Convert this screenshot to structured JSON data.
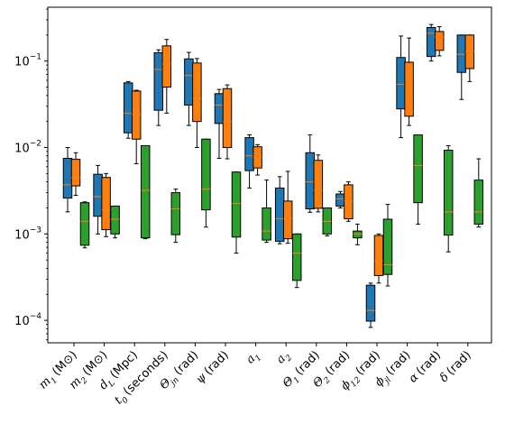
{
  "chart_data": {
    "type": "box",
    "y_scale": "log",
    "ylim": [
      5.5e-05,
      0.42
    ],
    "y_ticks": [
      {
        "value": 0.0001,
        "mantissa": "10",
        "exp": "−4"
      },
      {
        "value": 0.001,
        "mantissa": "10",
        "exp": "−3"
      },
      {
        "value": 0.01,
        "mantissa": "10",
        "exp": "−2"
      },
      {
        "value": 0.1,
        "mantissa": "10",
        "exp": "−1"
      }
    ],
    "categories": [
      {
        "math": "m",
        "sub": "1",
        "unit": "(M⊙)"
      },
      {
        "math": "m",
        "sub": "2",
        "unit": "(M⊙)"
      },
      {
        "math": "d",
        "sub": "L",
        "unit": "(Mpc)"
      },
      {
        "math": "t",
        "sub": "0",
        "unit": "(seconds)"
      },
      {
        "math": "Θ",
        "sub": "jn",
        "unit": "(rad)"
      },
      {
        "math": "ψ",
        "sub": "",
        "unit": "(rad)"
      },
      {
        "math": "a",
        "sub": "1",
        "unit": ""
      },
      {
        "math": "a",
        "sub": "2",
        "unit": ""
      },
      {
        "math": "Θ",
        "sub": "1",
        "unit": "(rad)"
      },
      {
        "math": "Θ",
        "sub": "2",
        "unit": "(rad)"
      },
      {
        "math": "ϕ",
        "sub": "12",
        "unit": "(rad)"
      },
      {
        "math": "ϕ",
        "sub": "jl",
        "unit": "(rad)"
      },
      {
        "math": "α",
        "sub": "",
        "unit": "(rad)"
      },
      {
        "math": "δ",
        "sub": "",
        "unit": "(rad)"
      }
    ],
    "colors": {
      "blue": "#1f77b4",
      "orange": "#ff7f0e",
      "green": "#2ca02c",
      "median_on_blue_orange": "#ff7f0e",
      "median_on_orange": "#ff7f0e"
    },
    "series": [
      {
        "color": "#1f77b4",
        "boxes": [
          {
            "whislo": 0.0018,
            "q1": 0.0026,
            "med": 0.0037,
            "q3": 0.0075,
            "whishi": 0.01
          },
          {
            "whislo": 0.001,
            "q1": 0.0016,
            "med": 0.0027,
            "q3": 0.0049,
            "whishi": 0.0062
          },
          {
            "whislo": 0.0128,
            "q1": 0.0148,
            "med": 0.025,
            "q3": 0.056,
            "whishi": 0.058
          },
          {
            "whislo": 0.018,
            "q1": 0.027,
            "med": 0.08,
            "q3": 0.125,
            "whishi": 0.135
          },
          {
            "whislo": 0.018,
            "q1": 0.031,
            "med": 0.068,
            "q3": 0.106,
            "whishi": 0.126
          },
          {
            "whislo": 0.0075,
            "q1": 0.019,
            "med": 0.031,
            "q3": 0.042,
            "whishi": 0.047
          },
          {
            "whislo": 0.0034,
            "q1": 0.0054,
            "med": 0.008,
            "q3": 0.013,
            "whishi": 0.014
          },
          {
            "whislo": 0.00077,
            "q1": 0.00082,
            "med": 0.0015,
            "q3": 0.0034,
            "whishi": 0.0046
          },
          {
            "whislo": 0.00178,
            "q1": 0.00195,
            "med": 0.004,
            "q3": 0.0087,
            "whishi": 0.014
          },
          {
            "whislo": 0.002,
            "q1": 0.0021,
            "med": 0.00255,
            "q3": 0.0029,
            "whishi": 0.0031
          },
          {
            "whislo": 8.3e-05,
            "q1": 9.8e-05,
            "med": 0.00013,
            "q3": 0.000255,
            "whishi": 0.00027
          },
          {
            "whislo": 0.013,
            "q1": 0.028,
            "med": 0.054,
            "q3": 0.11,
            "whishi": 0.195
          },
          {
            "whislo": 0.1,
            "q1": 0.113,
            "med": 0.21,
            "q3": 0.245,
            "whishi": 0.265
          },
          {
            "whislo": 0.036,
            "q1": 0.074,
            "med": 0.12,
            "q3": 0.2,
            "whishi": 0.2
          }
        ]
      },
      {
        "color": "#ff7f0e",
        "boxes": [
          {
            "whislo": 0.0028,
            "q1": 0.0036,
            "med": 0.0045,
            "q3": 0.0073,
            "whishi": 0.0087
          },
          {
            "whislo": 0.00093,
            "q1": 0.00112,
            "med": 0.0019,
            "q3": 0.0045,
            "whishi": 0.005
          },
          {
            "whislo": 0.0065,
            "q1": 0.0125,
            "med": 0.024,
            "q3": 0.045,
            "whishi": 0.046
          },
          {
            "whislo": 0.025,
            "q1": 0.05,
            "med": 0.093,
            "q3": 0.15,
            "whishi": 0.178
          },
          {
            "whislo": 0.01,
            "q1": 0.02,
            "med": 0.037,
            "q3": 0.095,
            "whishi": 0.107
          },
          {
            "whislo": 0.0074,
            "q1": 0.01,
            "med": 0.02,
            "q3": 0.048,
            "whishi": 0.053
          },
          {
            "whislo": 0.0048,
            "q1": 0.0058,
            "med": 0.0077,
            "q3": 0.0102,
            "whishi": 0.0108
          },
          {
            "whislo": 0.00078,
            "q1": 0.00088,
            "med": 0.0015,
            "q3": 0.0024,
            "whishi": 0.0053
          },
          {
            "whislo": 0.0018,
            "q1": 0.00198,
            "med": 0.0032,
            "q3": 0.0071,
            "whishi": 0.0082
          },
          {
            "whislo": 0.0014,
            "q1": 0.0015,
            "med": 0.0024,
            "q3": 0.0037,
            "whishi": 0.004
          },
          {
            "whislo": 0.00027,
            "q1": 0.00033,
            "med": 0.00049,
            "q3": 0.00096,
            "whishi": 0.001
          },
          {
            "whislo": 0.018,
            "q1": 0.023,
            "med": 0.026,
            "q3": 0.097,
            "whishi": 0.185
          },
          {
            "whislo": 0.115,
            "q1": 0.133,
            "med": 0.19,
            "q3": 0.22,
            "whishi": 0.25
          },
          {
            "whislo": 0.058,
            "q1": 0.082,
            "med": 0.13,
            "q3": 0.2,
            "whishi": 0.2
          }
        ]
      },
      {
        "color": "#2ca02c",
        "boxes": [
          {
            "whislo": 0.00069,
            "q1": 0.00074,
            "med": 0.0014,
            "q3": 0.0023,
            "whishi": 0.00235
          },
          {
            "whislo": 0.0009,
            "q1": 0.001,
            "med": 0.00148,
            "q3": 0.0021,
            "whishi": 0.0021
          },
          {
            "whislo": 0.00088,
            "q1": 0.0009,
            "med": 0.0032,
            "q3": 0.0105,
            "whishi": 0.0105
          },
          {
            "whislo": 0.0008,
            "q1": 0.00098,
            "med": 0.00195,
            "q3": 0.003,
            "whishi": 0.0033
          },
          {
            "whislo": 0.0012,
            "q1": 0.0019,
            "med": 0.0033,
            "q3": 0.0125,
            "whishi": 0.0125
          },
          {
            "whislo": 0.0006,
            "q1": 0.00092,
            "med": 0.00225,
            "q3": 0.0052,
            "whishi": 0.0052
          },
          {
            "whislo": 0.0008,
            "q1": 0.00085,
            "med": 0.00108,
            "q3": 0.002,
            "whishi": 0.0042
          },
          {
            "whislo": 0.00024,
            "q1": 0.00029,
            "med": 0.0006,
            "q3": 0.001,
            "whishi": 0.001
          },
          {
            "whislo": 0.00095,
            "q1": 0.001,
            "med": 0.0014,
            "q3": 0.002,
            "whishi": 0.002
          },
          {
            "whislo": 0.00075,
            "q1": 0.0009,
            "med": 0.001,
            "q3": 0.00108,
            "whishi": 0.0013
          },
          {
            "whislo": 0.00025,
            "q1": 0.00034,
            "med": 0.00044,
            "q3": 0.00148,
            "whishi": 0.0022
          },
          {
            "whislo": 0.0013,
            "q1": 0.0023,
            "med": 0.0062,
            "q3": 0.014,
            "whishi": 0.014
          },
          {
            "whislo": 0.00062,
            "q1": 0.00097,
            "med": 0.0018,
            "q3": 0.0093,
            "whishi": 0.0105
          },
          {
            "whislo": 0.0012,
            "q1": 0.0013,
            "med": 0.0018,
            "q3": 0.0042,
            "whishi": 0.0074
          }
        ]
      }
    ]
  }
}
